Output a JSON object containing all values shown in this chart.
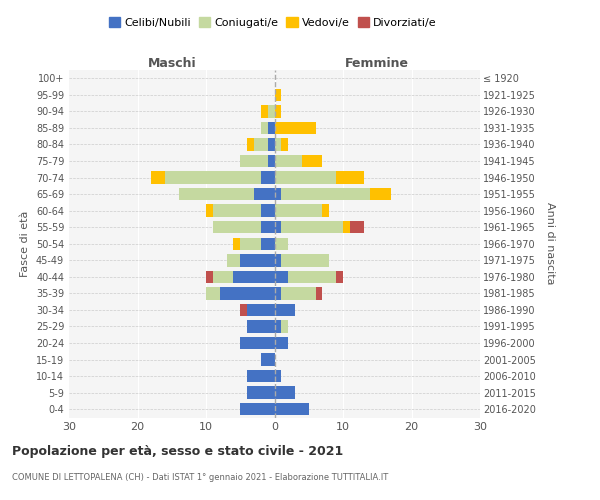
{
  "age_groups": [
    "100+",
    "95-99",
    "90-94",
    "85-89",
    "80-84",
    "75-79",
    "70-74",
    "65-69",
    "60-64",
    "55-59",
    "50-54",
    "45-49",
    "40-44",
    "35-39",
    "30-34",
    "25-29",
    "20-24",
    "15-19",
    "10-14",
    "5-9",
    "0-4"
  ],
  "birth_years": [
    "≤ 1920",
    "1921-1925",
    "1926-1930",
    "1931-1935",
    "1936-1940",
    "1941-1945",
    "1946-1950",
    "1951-1955",
    "1956-1960",
    "1961-1965",
    "1966-1970",
    "1971-1975",
    "1976-1980",
    "1981-1985",
    "1986-1990",
    "1991-1995",
    "1996-2000",
    "2001-2005",
    "2006-2010",
    "2011-2015",
    "2016-2020"
  ],
  "colors": {
    "celibe": "#4472c4",
    "coniugato": "#c5d9a0",
    "vedovo": "#ffc000",
    "divorziato": "#c0504d"
  },
  "maschi": {
    "celibe": [
      0,
      0,
      0,
      1,
      1,
      1,
      2,
      3,
      2,
      2,
      2,
      5,
      6,
      8,
      4,
      4,
      5,
      2,
      4,
      4,
      5
    ],
    "coniugato": [
      0,
      0,
      1,
      1,
      2,
      4,
      14,
      11,
      7,
      7,
      3,
      2,
      3,
      2,
      0,
      0,
      0,
      0,
      0,
      0,
      0
    ],
    "vedovo": [
      0,
      0,
      1,
      0,
      1,
      0,
      2,
      0,
      1,
      0,
      1,
      0,
      0,
      0,
      0,
      0,
      0,
      0,
      0,
      0,
      0
    ],
    "divorziato": [
      0,
      0,
      0,
      0,
      0,
      0,
      0,
      0,
      0,
      0,
      0,
      0,
      1,
      0,
      1,
      0,
      0,
      0,
      0,
      0,
      0
    ]
  },
  "femmine": {
    "celibe": [
      0,
      0,
      0,
      0,
      0,
      0,
      0,
      1,
      0,
      1,
      0,
      1,
      2,
      1,
      3,
      1,
      2,
      0,
      1,
      3,
      5
    ],
    "coniugato": [
      0,
      0,
      0,
      0,
      1,
      4,
      9,
      13,
      7,
      9,
      2,
      7,
      7,
      5,
      0,
      1,
      0,
      0,
      0,
      0,
      0
    ],
    "vedovo": [
      0,
      1,
      1,
      6,
      1,
      3,
      4,
      3,
      1,
      1,
      0,
      0,
      0,
      0,
      0,
      0,
      0,
      0,
      0,
      0,
      0
    ],
    "divorziato": [
      0,
      0,
      0,
      0,
      0,
      0,
      0,
      0,
      0,
      2,
      0,
      0,
      1,
      1,
      0,
      0,
      0,
      0,
      0,
      0,
      0
    ]
  },
  "xlim": 30,
  "title": "Popolazione per età, sesso e stato civile - 2021",
  "subtitle": "COMUNE DI LETTOPALENA (CH) - Dati ISTAT 1° gennaio 2021 - Elaborazione TUTTITALIA.IT",
  "ylabel_left": "Fasce di età",
  "ylabel_right": "Anni di nascita",
  "legend_labels": [
    "Celibi/Nubili",
    "Coniugati/e",
    "Vedovi/e",
    "Divorziati/e"
  ]
}
